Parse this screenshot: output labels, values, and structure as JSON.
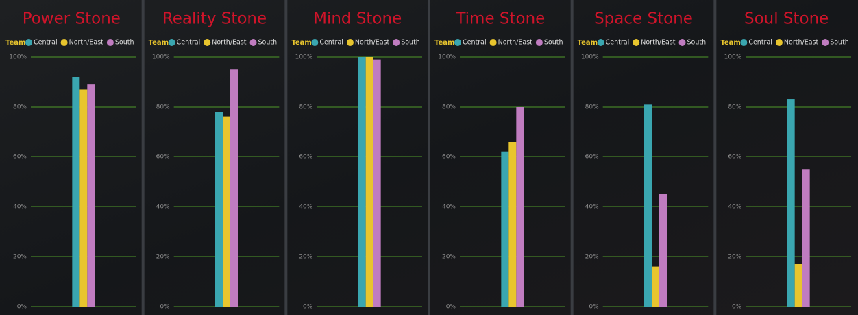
{
  "chart_data": [
    {
      "type": "bar",
      "title": "Power Stone",
      "legend_title": "Team",
      "categories": [
        null
      ],
      "series": [
        {
          "name": "Central",
          "color": "#3aa6b0",
          "values": [
            92
          ]
        },
        {
          "name": "North/East",
          "color": "#e8c52e",
          "values": [
            87
          ]
        },
        {
          "name": "South",
          "color": "#c07cc0",
          "values": [
            89
          ]
        }
      ],
      "ylim": [
        0,
        100
      ],
      "yticks": [
        {
          "value": 0,
          "label": "0%"
        },
        {
          "value": 20,
          "label": "20%"
        },
        {
          "value": 40,
          "label": "40%"
        },
        {
          "value": 60,
          "label": "60%"
        },
        {
          "value": 80,
          "label": "80%"
        },
        {
          "value": 100,
          "label": "100%"
        }
      ],
      "grid": true
    },
    {
      "type": "bar",
      "title": "Reality Stone",
      "legend_title": "Team",
      "categories": [
        null
      ],
      "series": [
        {
          "name": "Central",
          "color": "#3aa6b0",
          "values": [
            78
          ]
        },
        {
          "name": "North/East",
          "color": "#e8c52e",
          "values": [
            76
          ]
        },
        {
          "name": "South",
          "color": "#c07cc0",
          "values": [
            95
          ]
        }
      ],
      "ylim": [
        0,
        100
      ],
      "yticks": [
        {
          "value": 0,
          "label": "0%"
        },
        {
          "value": 20,
          "label": "20%"
        },
        {
          "value": 40,
          "label": "40%"
        },
        {
          "value": 60,
          "label": "60%"
        },
        {
          "value": 80,
          "label": "80%"
        },
        {
          "value": 100,
          "label": "100%"
        }
      ],
      "grid": true
    },
    {
      "type": "bar",
      "title": "Mind Stone",
      "legend_title": "Team",
      "categories": [
        null
      ],
      "series": [
        {
          "name": "Central",
          "color": "#3aa6b0",
          "values": [
            100
          ]
        },
        {
          "name": "North/East",
          "color": "#e8c52e",
          "values": [
            100
          ]
        },
        {
          "name": "South",
          "color": "#c07cc0",
          "values": [
            99
          ]
        }
      ],
      "ylim": [
        0,
        100
      ],
      "yticks": [
        {
          "value": 0,
          "label": "0%"
        },
        {
          "value": 20,
          "label": "20%"
        },
        {
          "value": 40,
          "label": "40%"
        },
        {
          "value": 60,
          "label": "60%"
        },
        {
          "value": 80,
          "label": "80%"
        },
        {
          "value": 100,
          "label": "100%"
        }
      ],
      "grid": true
    },
    {
      "type": "bar",
      "title": "Time Stone",
      "legend_title": "Team",
      "categories": [
        null
      ],
      "series": [
        {
          "name": "Central",
          "color": "#3aa6b0",
          "values": [
            62
          ]
        },
        {
          "name": "North/East",
          "color": "#e8c52e",
          "values": [
            66
          ]
        },
        {
          "name": "South",
          "color": "#c07cc0",
          "values": [
            80
          ]
        }
      ],
      "ylim": [
        0,
        100
      ],
      "yticks": [
        {
          "value": 0,
          "label": "0%"
        },
        {
          "value": 20,
          "label": "20%"
        },
        {
          "value": 40,
          "label": "40%"
        },
        {
          "value": 60,
          "label": "60%"
        },
        {
          "value": 80,
          "label": "80%"
        },
        {
          "value": 100,
          "label": "100%"
        }
      ],
      "grid": true
    },
    {
      "type": "bar",
      "title": "Space Stone",
      "legend_title": "Team",
      "categories": [
        null
      ],
      "series": [
        {
          "name": "Central",
          "color": "#3aa6b0",
          "values": [
            81
          ]
        },
        {
          "name": "North/East",
          "color": "#e8c52e",
          "values": [
            16
          ]
        },
        {
          "name": "South",
          "color": "#c07cc0",
          "values": [
            45
          ]
        }
      ],
      "ylim": [
        0,
        100
      ],
      "yticks": [
        {
          "value": 0,
          "label": "0%"
        },
        {
          "value": 20,
          "label": "20%"
        },
        {
          "value": 40,
          "label": "40%"
        },
        {
          "value": 60,
          "label": "60%"
        },
        {
          "value": 80,
          "label": "80%"
        },
        {
          "value": 100,
          "label": "100%"
        }
      ],
      "grid": true
    },
    {
      "type": "bar",
      "title": "Soul Stone",
      "legend_title": "Team",
      "categories": [
        null
      ],
      "series": [
        {
          "name": "Central",
          "color": "#3aa6b0",
          "values": [
            83
          ]
        },
        {
          "name": "North/East",
          "color": "#e8c52e",
          "values": [
            17
          ]
        },
        {
          "name": "South",
          "color": "#c07cc0",
          "values": [
            55
          ]
        }
      ],
      "ylim": [
        0,
        100
      ],
      "yticks": [
        {
          "value": 0,
          "label": "0%"
        },
        {
          "value": 20,
          "label": "20%"
        },
        {
          "value": 40,
          "label": "40%"
        },
        {
          "value": 60,
          "label": "60%"
        },
        {
          "value": 80,
          "label": "80%"
        },
        {
          "value": 100,
          "label": "100%"
        }
      ],
      "grid": true
    }
  ]
}
